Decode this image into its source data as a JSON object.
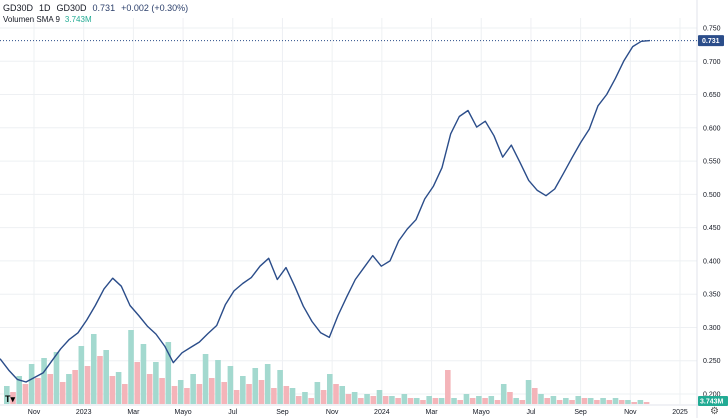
{
  "header": {
    "symbol": "GD30D",
    "interval": "1D",
    "ticker": "GD30D",
    "price": "0.731",
    "change": "+0.002 (+0.30%)"
  },
  "volume_legend": {
    "label": "Volumen SMA 9",
    "value": "3.743M"
  },
  "badges": {
    "price": "0.731",
    "volume": "3.743M"
  },
  "icons": {
    "logo": "tradingview-logo-icon",
    "settings": "gear-icon"
  },
  "colors": {
    "line": "#2b4d8a",
    "volume_up": "#a3d9cf",
    "volume_down": "#f4b4b9",
    "grid": "#eef0f3",
    "badge": "#2b4d8a",
    "volume_badge": "#22ab94"
  },
  "chart_data": {
    "type": "line",
    "y_axis": {
      "ticks": [
        "0.750",
        "0.700",
        "0.650",
        "0.600",
        "0.550",
        "0.500",
        "0.450",
        "0.400",
        "0.350",
        "0.300",
        "0.250",
        "0.200"
      ],
      "range": [
        0.185,
        0.765
      ]
    },
    "x_axis": {
      "ticks": [
        "Nov",
        "2023",
        "Mar",
        "Mayo",
        "Jul",
        "Sep",
        "Nov",
        "2024",
        "Mar",
        "Mayo",
        "Jul",
        "Sep",
        "Nov",
        "2025"
      ]
    },
    "series": [
      {
        "values": [
          0.253,
          0.236,
          0.222,
          0.218,
          0.225,
          0.232,
          0.25,
          0.268,
          0.282,
          0.292,
          0.311,
          0.333,
          0.358,
          0.374,
          0.362,
          0.333,
          0.318,
          0.302,
          0.29,
          0.272,
          0.247,
          0.262,
          0.27,
          0.278,
          0.291,
          0.303,
          0.334,
          0.355,
          0.366,
          0.375,
          0.392,
          0.404,
          0.372,
          0.39,
          0.362,
          0.332,
          0.309,
          0.292,
          0.285,
          0.318,
          0.346,
          0.372,
          0.39,
          0.408,
          0.392,
          0.4,
          0.43,
          0.448,
          0.462,
          0.493,
          0.512,
          0.54,
          0.591,
          0.617,
          0.626,
          0.601,
          0.61,
          0.588,
          0.556,
          0.574,
          0.548,
          0.521,
          0.506,
          0.498,
          0.508,
          0.531,
          0.555,
          0.578,
          0.598,
          0.633,
          0.65,
          0.674,
          0.701,
          0.722,
          0.73,
          0.731
        ]
      }
    ],
    "last_value": 0.731,
    "volume": {
      "up": [
        18,
        28,
        40,
        46,
        52,
        30,
        58,
        70,
        54,
        32,
        74,
        60,
        42,
        62,
        24,
        30,
        50,
        44,
        38,
        28,
        36,
        40,
        34,
        16,
        12,
        22,
        30,
        18,
        12,
        10,
        14,
        8,
        10,
        6,
        8,
        6,
        6,
        10,
        8,
        8,
        20,
        6,
        24,
        10,
        8,
        6,
        8,
        6,
        6,
        6,
        4,
        4
      ],
      "down": [
        12,
        20,
        26,
        30,
        22,
        34,
        38,
        48,
        28,
        20,
        42,
        30,
        26,
        18,
        16,
        20,
        26,
        22,
        14,
        20,
        24,
        16,
        18,
        8,
        6,
        14,
        20,
        10,
        6,
        8,
        8,
        6,
        6,
        4,
        6,
        34,
        4,
        6,
        6,
        4,
        12,
        4,
        16,
        6,
        4,
        4,
        6,
        4,
        4,
        4,
        2,
        2
      ]
    },
    "grid": true
  }
}
